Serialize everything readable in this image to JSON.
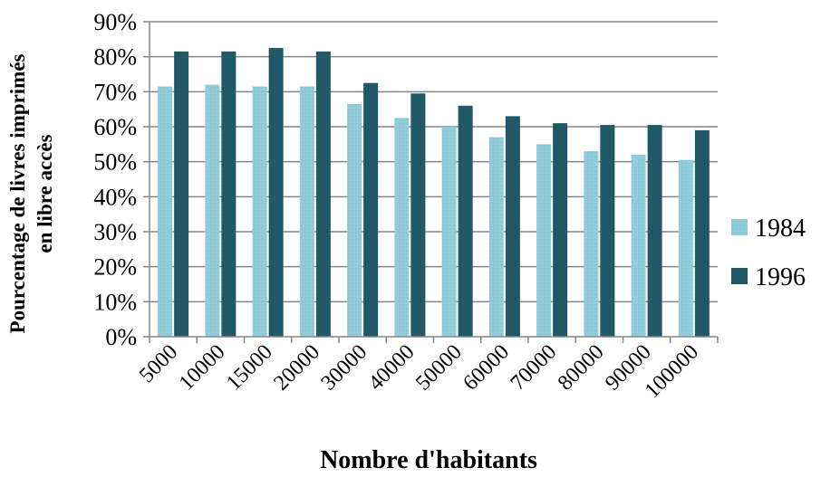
{
  "chart_data": {
    "type": "bar",
    "title": "",
    "xlabel": "Nombre d'habitants",
    "ylabel_lines": [
      "Pourcentage de livres imprimés",
      "en libre  accès"
    ],
    "categories": [
      "5000",
      "10000",
      "15000",
      "20000",
      "30000",
      "40000",
      "50000",
      "60000",
      "70000",
      "80000",
      "90000",
      "100000"
    ],
    "series": [
      {
        "name": "1984",
        "color": "#92cddc",
        "values": [
          71.5,
          72,
          71.5,
          71.5,
          66.5,
          62.5,
          60,
          57,
          55,
          53,
          52,
          50.5
        ]
      },
      {
        "name": "1996",
        "color": "#215968",
        "values": [
          81.5,
          81.5,
          82.5,
          81.5,
          72.5,
          69.5,
          66,
          63,
          61,
          60.5,
          60.5,
          59
        ]
      }
    ],
    "ylim": [
      0,
      90
    ],
    "yticks": [
      "0%",
      "10%",
      "20%",
      "30%",
      "40%",
      "50%",
      "60%",
      "70%",
      "80%",
      "90%"
    ],
    "grid": true,
    "legend": "right"
  }
}
